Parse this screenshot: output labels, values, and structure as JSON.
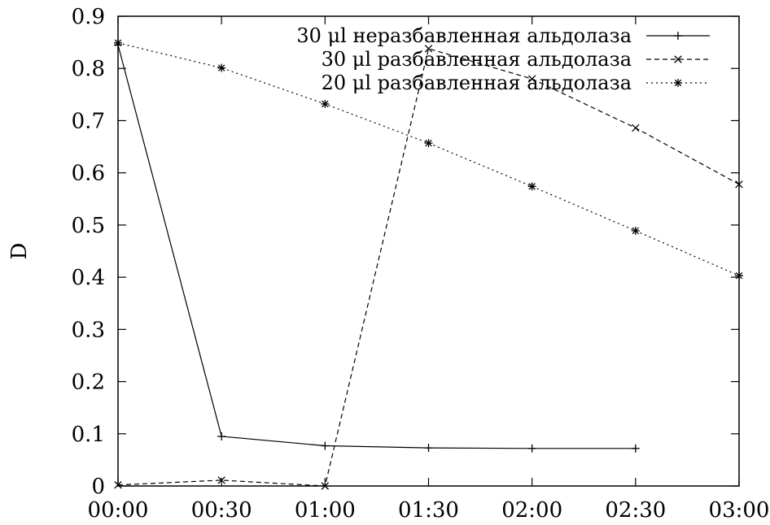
{
  "chart_data": {
    "type": "line",
    "xlabel": "",
    "ylabel": "D",
    "x": [
      "00:00",
      "00:30",
      "01:00",
      "01:30",
      "02:00",
      "02:30",
      "03:00"
    ],
    "xlim": [
      0,
      180
    ],
    "ylim": [
      0,
      0.9
    ],
    "yticks": [
      "0",
      "0.1",
      "0.2",
      "0.3",
      "0.4",
      "0.5",
      "0.6",
      "0.7",
      "0.8",
      "0.9"
    ],
    "grid": false,
    "legend_position": "top-right",
    "series": [
      {
        "name": "30 μl неразбавленная альдолаза",
        "dash": "solid",
        "marker": "plus",
        "x": [
          0,
          30,
          60,
          90,
          120,
          150
        ],
        "values": [
          0.845,
          0.095,
          0.077,
          0.073,
          0.072,
          0.072
        ]
      },
      {
        "name": "30 μl разбавленная альдолаза",
        "dash": "dashed",
        "marker": "cross",
        "x": [
          0,
          30,
          60,
          90,
          120,
          150,
          180
        ],
        "values": [
          0.002,
          0.011,
          0.0,
          0.838,
          0.78,
          0.686,
          0.578
        ]
      },
      {
        "name": "20 μl разбавленная альдолаза",
        "dash": "dotted",
        "marker": "star",
        "x": [
          0,
          30,
          60,
          90,
          120,
          150,
          180
        ],
        "values": [
          0.849,
          0.801,
          0.732,
          0.657,
          0.574,
          0.489,
          0.403
        ]
      }
    ]
  }
}
